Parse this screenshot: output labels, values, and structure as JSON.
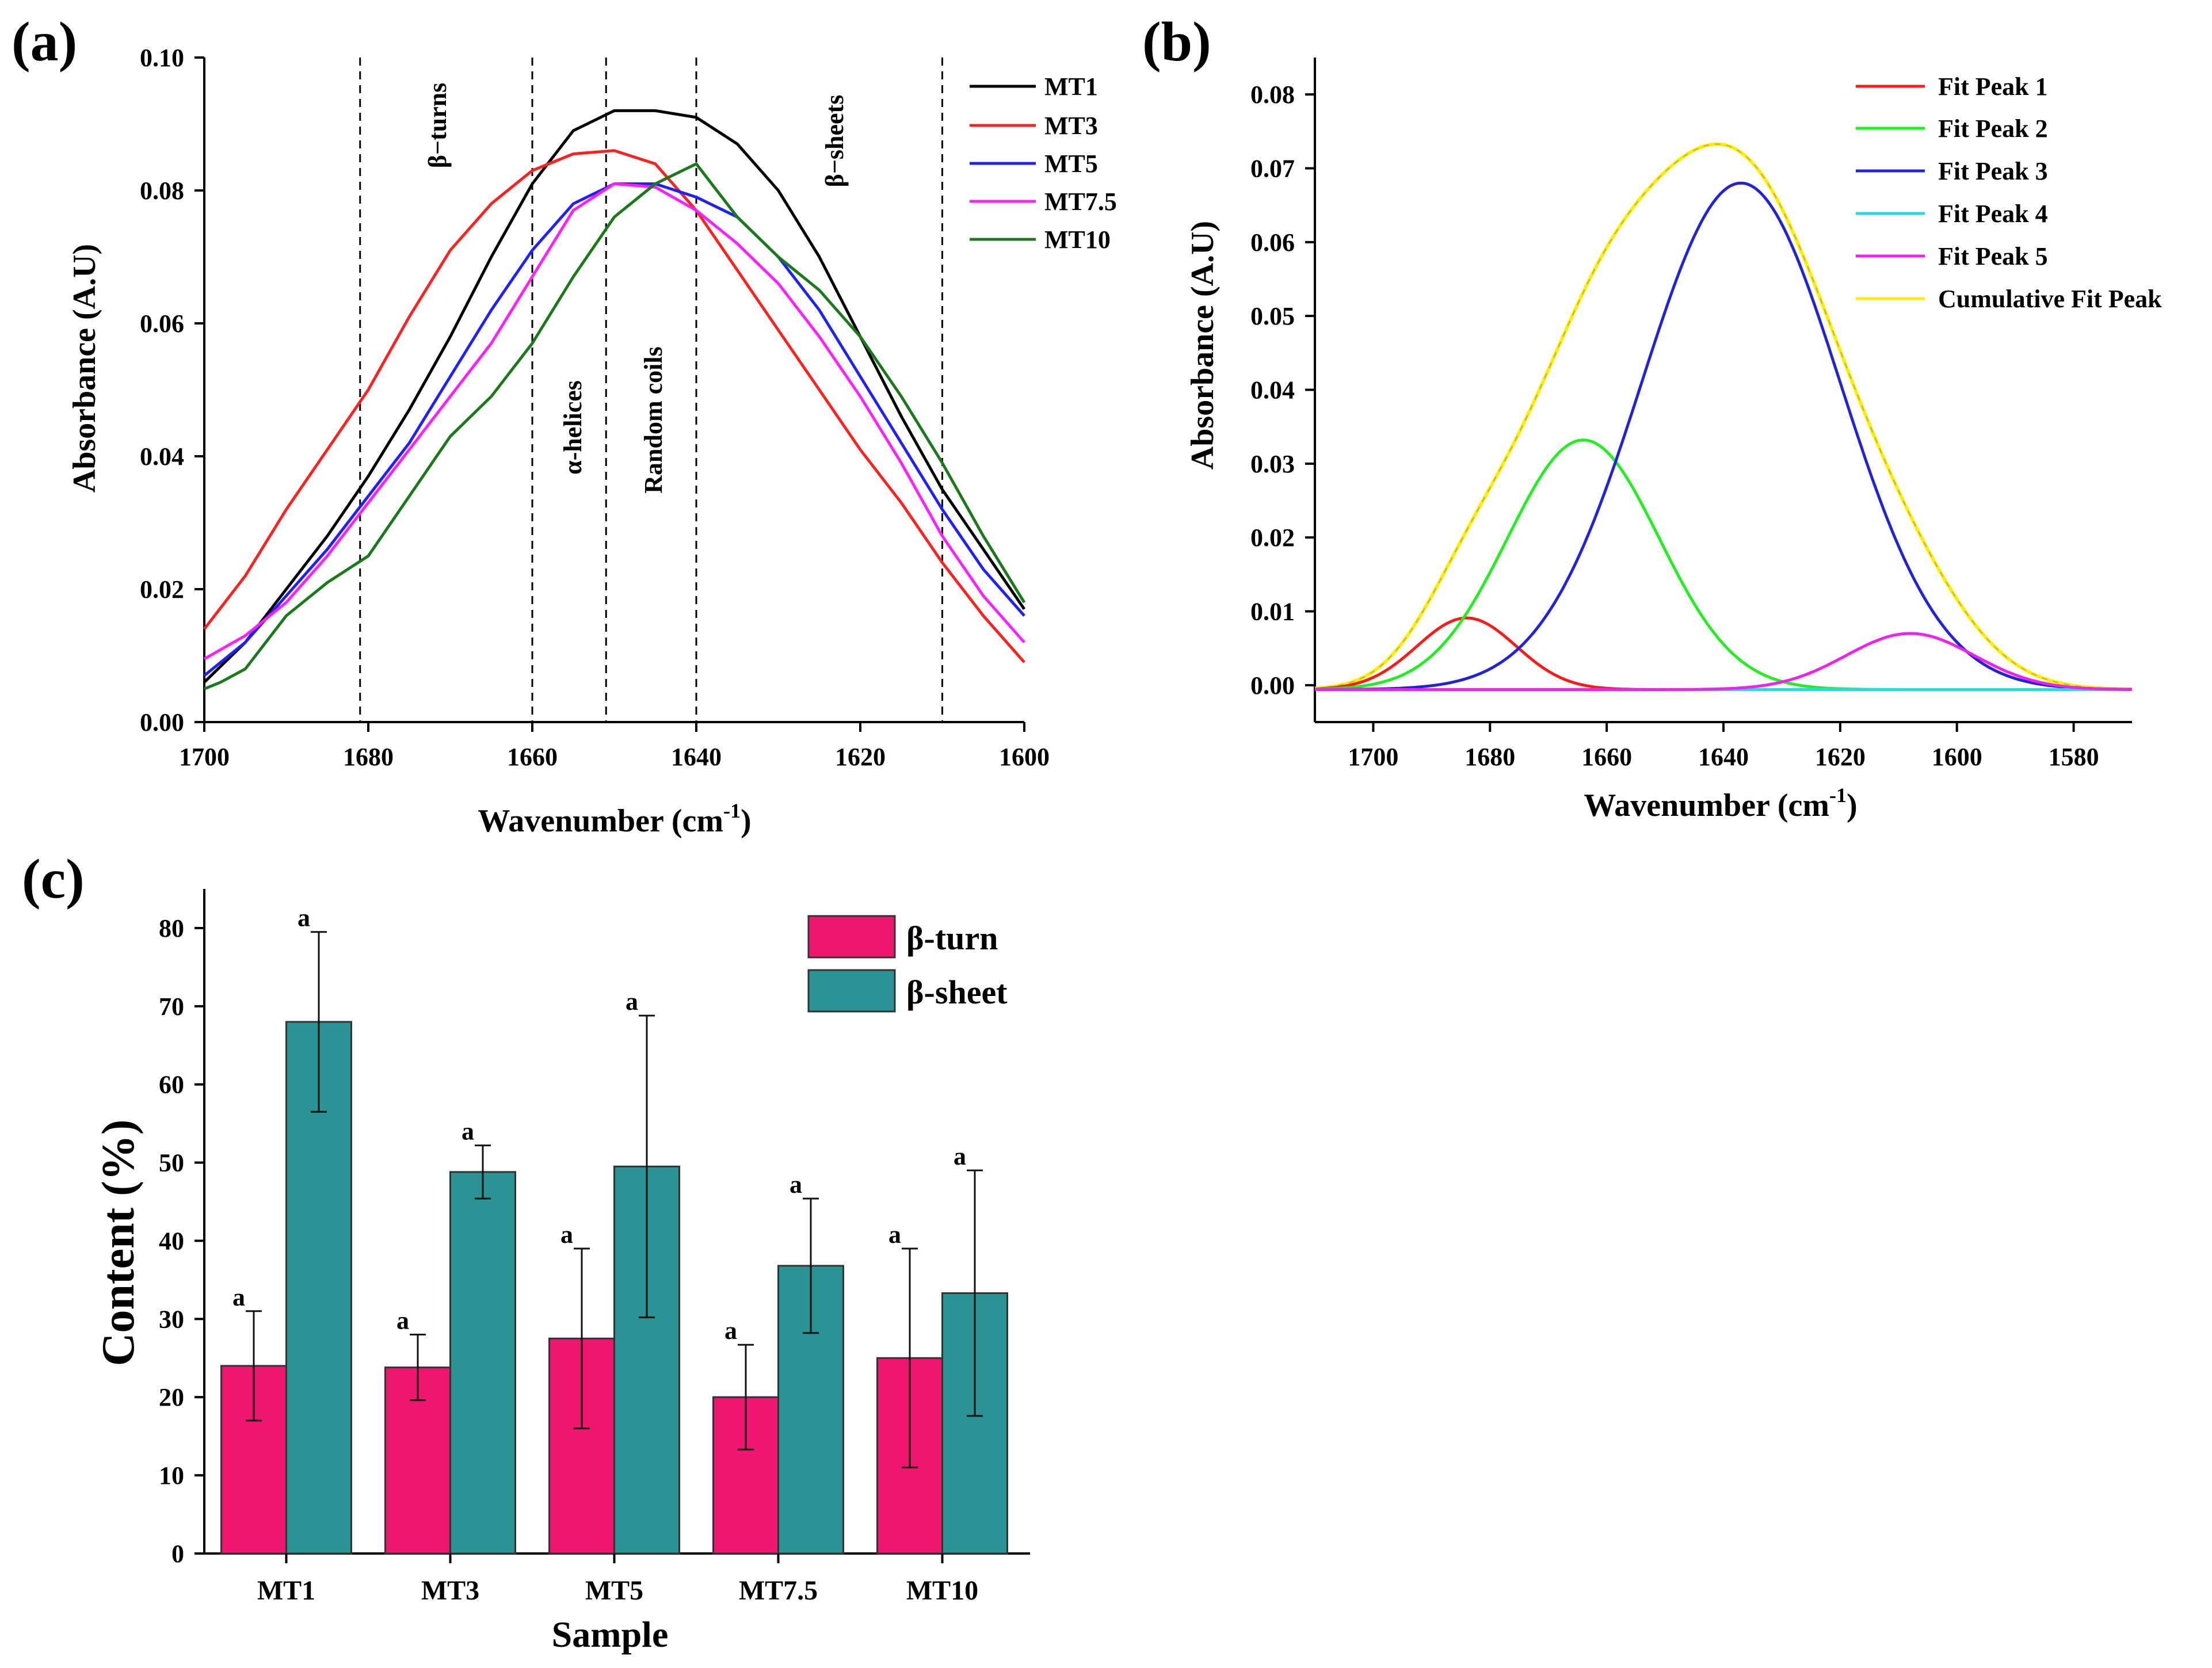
{
  "chart_data": [
    {
      "panel_label": "(a)",
      "type": "line",
      "xlabel": "Wavenumber (cm",
      "xlabel_sup": "-1",
      "xlabel_close": ")",
      "ylabel": "Absorbance (A.U)",
      "xlim": [
        1700,
        1600
      ],
      "ylim": [
        0,
        0.1
      ],
      "xticks": [
        "1700",
        "1680",
        "1660",
        "1640",
        "1620",
        "1600"
      ],
      "xtick_values": [
        1700,
        1680,
        1660,
        1640,
        1620,
        1600
      ],
      "yticks": [
        "0.00",
        "0.02",
        "0.04",
        "0.06",
        "0.08",
        "0.10"
      ],
      "ytick_values": [
        0,
        0.02,
        0.04,
        0.06,
        0.08,
        0.1
      ],
      "region_lines": [
        1681,
        1660,
        1651,
        1640,
        1610
      ],
      "region_labels": [
        "β−turns",
        "α-helices",
        "Random coils",
        "β−sheets"
      ],
      "legend": [
        "MT1",
        "MT3",
        "MT5",
        "MT7.5",
        "MT10"
      ],
      "series": [
        {
          "name": "MT1",
          "color": "#000000",
          "x": [
            1700,
            1695,
            1690,
            1685,
            1680,
            1675,
            1670,
            1665,
            1660,
            1655,
            1650,
            1645,
            1640,
            1635,
            1630,
            1625,
            1620,
            1615,
            1610,
            1605,
            1600
          ],
          "y": [
            0.006,
            0.012,
            0.02,
            0.028,
            0.037,
            0.047,
            0.058,
            0.07,
            0.081,
            0.089,
            0.092,
            0.092,
            0.091,
            0.087,
            0.08,
            0.07,
            0.058,
            0.046,
            0.035,
            0.026,
            0.017
          ]
        },
        {
          "name": "MT3",
          "color": "#ff2020",
          "x": [
            1700,
            1695,
            1690,
            1685,
            1680,
            1675,
            1670,
            1665,
            1660,
            1655,
            1650,
            1645,
            1640,
            1635,
            1630,
            1625,
            1620,
            1615,
            1610,
            1605,
            1600
          ],
          "y": [
            0.014,
            0.022,
            0.032,
            0.041,
            0.05,
            0.061,
            0.071,
            0.078,
            0.083,
            0.0855,
            0.086,
            0.084,
            0.077,
            0.068,
            0.059,
            0.05,
            0.041,
            0.033,
            0.024,
            0.016,
            0.009
          ]
        },
        {
          "name": "MT5",
          "color": "#2020ff",
          "x": [
            1700,
            1695,
            1690,
            1685,
            1680,
            1675,
            1670,
            1665,
            1660,
            1655,
            1650,
            1645,
            1640,
            1635,
            1630,
            1625,
            1620,
            1615,
            1610,
            1605,
            1600
          ],
          "y": [
            0.007,
            0.012,
            0.019,
            0.026,
            0.034,
            0.042,
            0.052,
            0.062,
            0.071,
            0.078,
            0.081,
            0.081,
            0.079,
            0.076,
            0.07,
            0.062,
            0.052,
            0.042,
            0.032,
            0.023,
            0.016
          ]
        },
        {
          "name": "MT7.5",
          "color": "#ff20ff",
          "x": [
            1700,
            1695,
            1690,
            1685,
            1680,
            1675,
            1670,
            1665,
            1660,
            1655,
            1650,
            1645,
            1640,
            1635,
            1630,
            1625,
            1620,
            1615,
            1610,
            1605,
            1600
          ],
          "y": [
            0.0095,
            0.013,
            0.018,
            0.025,
            0.033,
            0.041,
            0.049,
            0.057,
            0.067,
            0.077,
            0.081,
            0.0805,
            0.077,
            0.072,
            0.066,
            0.058,
            0.049,
            0.039,
            0.028,
            0.019,
            0.012
          ]
        },
        {
          "name": "MT10",
          "color": "#1a7a1a",
          "x": [
            1700,
            1698,
            1695,
            1690,
            1685,
            1680,
            1675,
            1670,
            1665,
            1660,
            1655,
            1650,
            1645,
            1640,
            1635,
            1630,
            1625,
            1620,
            1615,
            1610,
            1605,
            1600
          ],
          "y": [
            0.005,
            0.006,
            0.008,
            0.016,
            0.021,
            0.025,
            0.034,
            0.043,
            0.049,
            0.057,
            0.067,
            0.076,
            0.081,
            0.084,
            0.076,
            0.07,
            0.065,
            0.058,
            0.049,
            0.039,
            0.028,
            0.018
          ]
        }
      ]
    },
    {
      "panel_label": "(b)",
      "type": "line",
      "xlabel": "Wavenumber (cm",
      "xlabel_sup": "-1",
      "xlabel_close": ")",
      "ylabel": "Absorbance (A.U)",
      "xlim": [
        1710,
        1570
      ],
      "ylim": [
        -0.005,
        0.085
      ],
      "xticks": [
        "1700",
        "1680",
        "1660",
        "1640",
        "1620",
        "1600",
        "1580"
      ],
      "xtick_values": [
        1700,
        1680,
        1660,
        1640,
        1620,
        1600,
        1580
      ],
      "yticks": [
        "0.00",
        "0.01",
        "0.02",
        "0.03",
        "0.04",
        "0.05",
        "0.06",
        "0.07",
        "0.08"
      ],
      "ytick_values": [
        0,
        0.01,
        0.02,
        0.03,
        0.04,
        0.05,
        0.06,
        0.07,
        0.08
      ],
      "baseline": -0.0006,
      "legend": [
        "Fit Peak 1",
        "Fit Peak 2",
        "Fit Peak 3",
        "Fit Peak 4",
        "Fit Peak 5",
        "Cumulative Fit Peak"
      ],
      "peaks": [
        {
          "name": "Fit Peak 1",
          "color": "#ff1a1a",
          "center": 1684,
          "height": 0.0097,
          "sigma": 8.5
        },
        {
          "name": "Fit Peak 2",
          "color": "#22ee22",
          "center": 1664,
          "height": 0.0338,
          "sigma": 13
        },
        {
          "name": "Fit Peak 3",
          "color": "#2222dd",
          "center": 1637,
          "height": 0.0686,
          "sigma": 17
        },
        {
          "name": "Fit Peak 4",
          "color": "#22dddd",
          "center": 1640,
          "height": 0.0,
          "sigma": 10
        },
        {
          "name": "Fit Peak 5",
          "color": "#ee22ee",
          "center": 1608,
          "height": 0.0076,
          "sigma": 11
        }
      ],
      "cumulative": {
        "name": "Cumulative Fit Peak",
        "color": "#ffee00"
      }
    },
    {
      "panel_label": "(c)",
      "type": "bar",
      "xlabel": "Sample",
      "ylabel": "Content (%)",
      "ylim": [
        0,
        85
      ],
      "yticks": [
        "0",
        "10",
        "20",
        "30",
        "40",
        "50",
        "60",
        "70",
        "80"
      ],
      "ytick_values": [
        0,
        10,
        20,
        30,
        40,
        50,
        60,
        70,
        80
      ],
      "categories": [
        "MT1",
        "MT3",
        "MT5",
        "MT7.5",
        "MT10"
      ],
      "series": [
        {
          "name": "β-turn",
          "color": "#f0156f",
          "edge": "#333333",
          "values": [
            24,
            23.8,
            27.5,
            20,
            25
          ],
          "errors": [
            7,
            4.2,
            11.5,
            6.7,
            14
          ],
          "labels": [
            "a",
            "a",
            "a",
            "a",
            "a"
          ]
        },
        {
          "name": "β-sheet",
          "color": "#2a9393",
          "edge": "#333333",
          "values": [
            68,
            48.8,
            49.5,
            36.8,
            33.3
          ],
          "errors": [
            11.5,
            3.4,
            19.3,
            8.6,
            15.7
          ],
          "labels": [
            "a",
            "a",
            "a",
            "a",
            "a"
          ]
        }
      ]
    }
  ]
}
